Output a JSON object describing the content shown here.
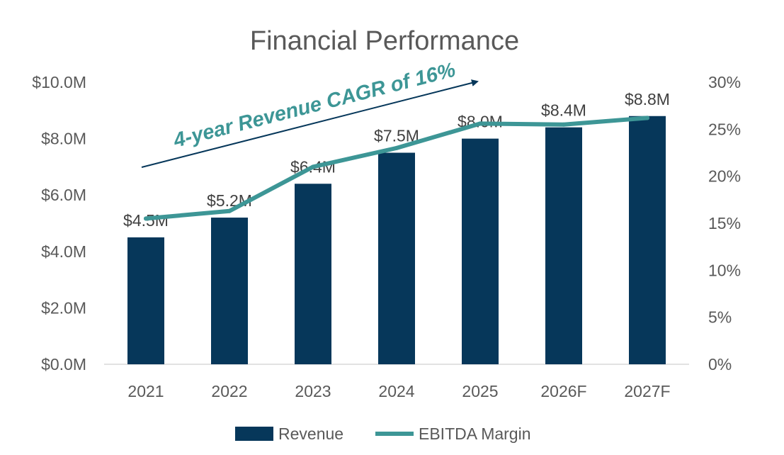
{
  "chart_data": {
    "type": "bar",
    "title": "Financial Performance",
    "categories": [
      "2021",
      "2022",
      "2023",
      "2024",
      "2025",
      "2026F",
      "2027F"
    ],
    "series": [
      {
        "name": "Revenue",
        "type": "bar",
        "axis": "left",
        "values": [
          4.5,
          5.2,
          6.4,
          7.5,
          8.0,
          8.4,
          8.8
        ],
        "labels": [
          "$4.5M",
          "$5.2M",
          "$6.4M",
          "$7.5M",
          "$8.0M",
          "$8.4M",
          "$8.8M"
        ],
        "color": "#06375a"
      },
      {
        "name": "EBITDA Margin",
        "type": "line",
        "axis": "right",
        "values": [
          15.5,
          16.3,
          21.0,
          23.0,
          25.6,
          25.5,
          26.2
        ],
        "color": "#3d9696"
      }
    ],
    "y_left": {
      "ticks": [
        "$0.0M",
        "$2.0M",
        "$4.0M",
        "$6.0M",
        "$8.0M",
        "$10.0M"
      ],
      "tick_values": [
        0,
        2,
        4,
        6,
        8,
        10
      ],
      "range": [
        0,
        10
      ]
    },
    "y_right": {
      "ticks": [
        "0%",
        "5%",
        "10%",
        "15%",
        "20%",
        "25%",
        "30%"
      ],
      "tick_values": [
        0,
        5,
        10,
        15,
        20,
        25,
        30
      ],
      "range": [
        0,
        30
      ]
    },
    "grid": false,
    "legend": {
      "position": "bottom",
      "entries": [
        "Revenue",
        "EBITDA Margin"
      ]
    },
    "annotation": {
      "text": "4-year Revenue CAGR of 16%"
    }
  }
}
